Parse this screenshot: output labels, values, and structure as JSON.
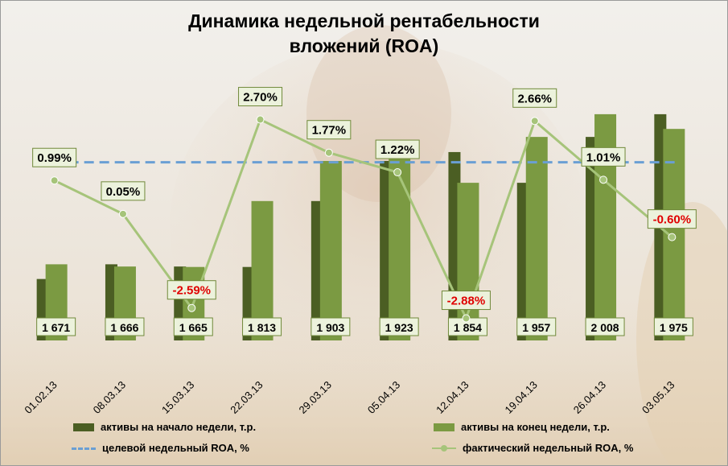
{
  "chart_data": {
    "type": "bar",
    "title_lines": [
      "Динамика недельной рентабельности",
      "вложений (ROA)"
    ],
    "categories": [
      "01.02.13",
      "08.03.13",
      "15.03.13",
      "22.03.13",
      "29.03.13",
      "05.04.13",
      "12.04.13",
      "19.04.13",
      "26.04.13",
      "03.05.13"
    ],
    "bar_value_min": 1500,
    "bar_value_max": 2100,
    "series": [
      {
        "name": "активы на начало  недели, т.р.",
        "kind": "bar",
        "color": "#4b5e23",
        "values": [
          1638,
          1671,
          1666,
          1665,
          1813,
          1903,
          1923,
          1854,
          1957,
          2008
        ]
      },
      {
        "name": "активы на конец недели, т.р.",
        "kind": "bar",
        "color": "#7b9a42",
        "values": [
          1671,
          1666,
          1665,
          1813,
          1903,
          1923,
          1854,
          1957,
          2008,
          1975
        ]
      },
      {
        "name": "целевой недельный ROA, %",
        "kind": "line",
        "color": "#6a9fd4",
        "value": 1.5
      },
      {
        "name": "фактический недельный ROA, %",
        "kind": "line",
        "color": "#a6c47a",
        "values": [
          0.99,
          0.05,
          -2.59,
          2.7,
          1.77,
          1.22,
          -2.88,
          2.66,
          1.01,
          -0.6
        ],
        "labels": [
          "0.99%",
          "0.05%",
          "-2.59%",
          "2.70%",
          "1.77%",
          "1.22%",
          "-2.88%",
          "2.66%",
          "1.01%",
          "-0.60%"
        ]
      }
    ],
    "bar_labels": [
      "1 671",
      "1 666",
      "1 665",
      "1 813",
      "1 903",
      "1 923",
      "1 854",
      "1 957",
      "2 008",
      "1 975"
    ],
    "roa_range": [
      -3.5,
      4.0
    ],
    "negative_label_color": "#e00000",
    "label_box_fill": "#ecf2dc",
    "label_box_border": "#70893a",
    "legend_position": "bottom"
  }
}
